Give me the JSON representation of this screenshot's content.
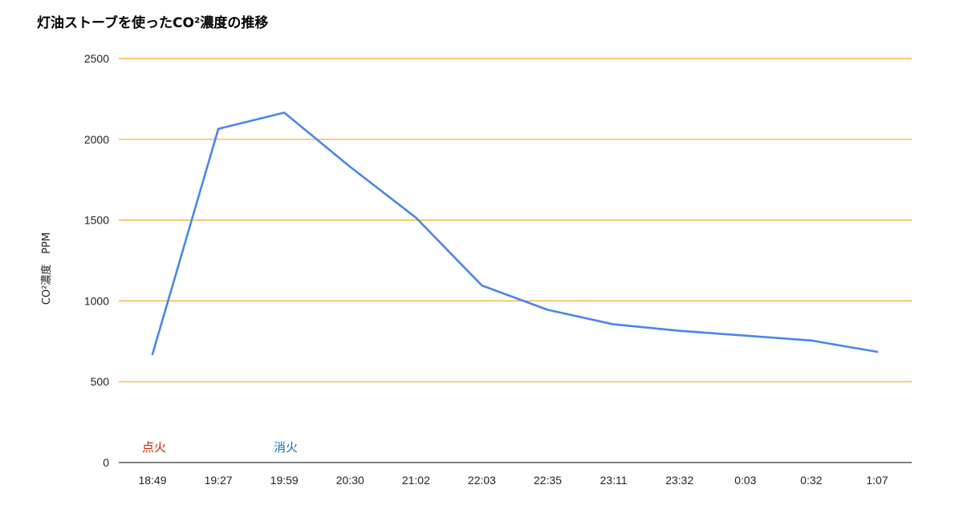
{
  "chart_data": {
    "type": "line",
    "title": "灯油ストーブを使ったCO²濃度の推移",
    "ylabel": "CO²濃度　PPM",
    "xlabel": "",
    "categories": [
      "18:49",
      "19:27",
      "19:59",
      "20:30",
      "21:02",
      "22:03",
      "22:35",
      "23:11",
      "23:32",
      "0:03",
      "0:32",
      "1:07"
    ],
    "series": [
      {
        "values": [
          670,
          2065,
          2165,
          1830,
          1515,
          1095,
          945,
          855,
          815,
          785,
          755,
          685
        ]
      }
    ],
    "ylim": [
      0,
      2500
    ],
    "yticks": [
      0,
      500,
      1000,
      1500,
      2000,
      2500
    ],
    "grid": true,
    "annotations": [
      {
        "text": "点火",
        "category_index": 0,
        "y": 100,
        "color": "#cc2200"
      },
      {
        "text": "消火",
        "category_index": 2,
        "y": 100,
        "color": "#1a6fa8"
      }
    ],
    "colors": {
      "line": "#4a86e8",
      "grid": "#f4a92b",
      "axis": "#333333"
    }
  }
}
